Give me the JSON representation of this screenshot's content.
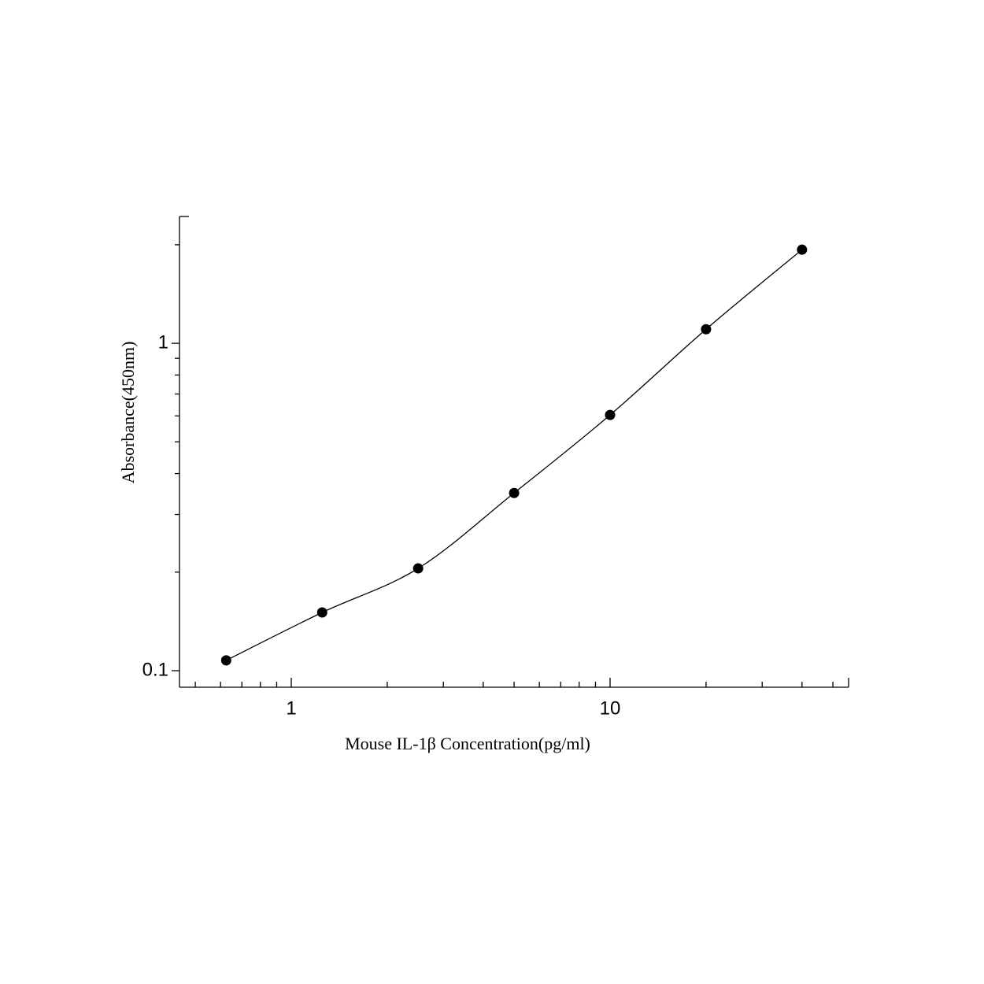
{
  "chart_data": {
    "type": "scatter",
    "x_label": "Mouse IL-1β Concentration(pg/ml)",
    "y_label": "Absorbance(450nm)",
    "x": [
      0.625,
      1.25,
      2.5,
      5,
      10,
      20,
      40
    ],
    "values": [
      0.1075,
      0.1506,
      0.2053,
      0.349,
      0.604,
      1.104,
      1.932
    ],
    "color": "#000000",
    "x_log": true,
    "y_log": true,
    "xlim": [
      0.446,
      56
    ],
    "ylim": [
      0.089,
      2.44
    ],
    "xticks": [
      1,
      10
    ],
    "xminor_ticks": [
      0.5,
      0.6,
      0.7,
      0.8,
      0.9,
      2,
      3,
      4,
      5,
      6,
      7,
      8,
      9,
      20,
      30,
      40,
      50
    ],
    "yticks": [
      0.1,
      1
    ],
    "yminor_ticks": [
      0.2,
      0.3,
      0.4,
      0.5,
      0.6,
      0.7,
      0.8,
      0.9,
      2
    ],
    "fit_curve": true
  }
}
